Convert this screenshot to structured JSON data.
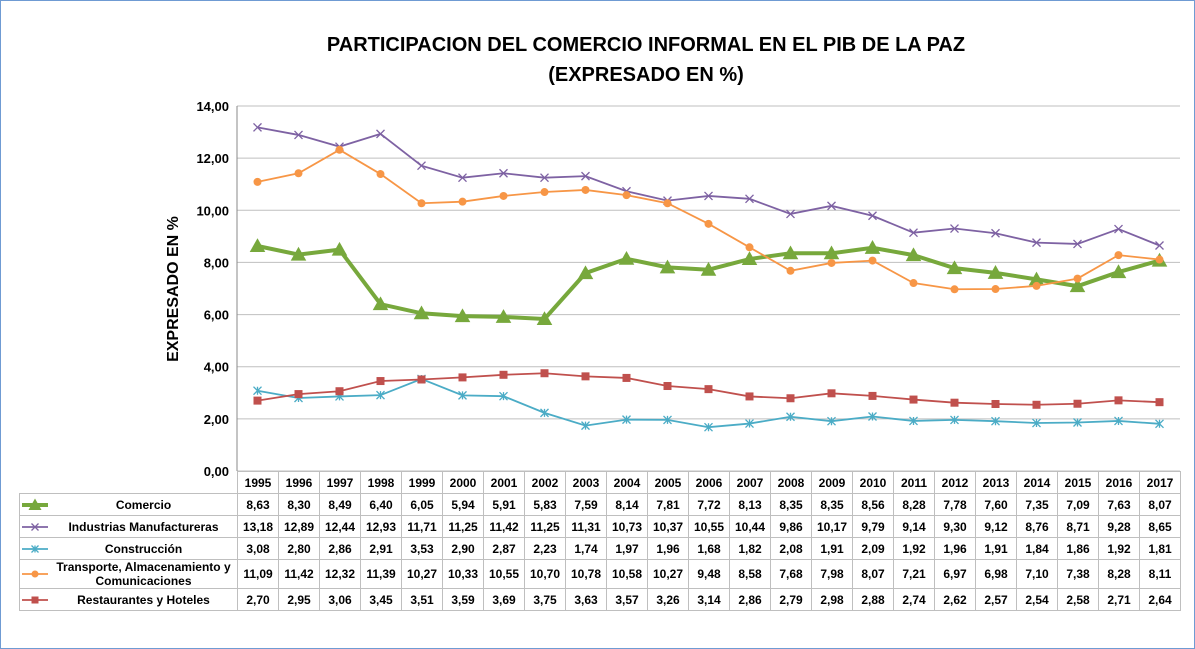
{
  "chart_data": {
    "type": "line",
    "title": "PARTICIPACION DEL COMERCIO INFORMAL EN EL PIB DE LA PAZ",
    "subtitle": "(EXPRESADO EN %)",
    "y_label": "EXPRESADO EN  %",
    "categories": [
      "1995",
      "1996",
      "1997",
      "1998",
      "1999",
      "2000",
      "2001",
      "2002",
      "2003",
      "2004",
      "2005",
      "2006",
      "2007",
      "2008",
      "2009",
      "2010",
      "2011",
      "2012",
      "2013",
      "2014",
      "2015",
      "2016",
      "2017"
    ],
    "ylim": [
      0,
      14
    ],
    "yticks": [
      {
        "value": 0,
        "label": "0,00"
      },
      {
        "value": 2,
        "label": "2,00"
      },
      {
        "value": 4,
        "label": "4,00"
      },
      {
        "value": 6,
        "label": "6,00"
      },
      {
        "value": 8,
        "label": "8,00"
      },
      {
        "value": 10,
        "label": "10,00"
      },
      {
        "value": 12,
        "label": "12,00"
      },
      {
        "value": 14,
        "label": "14,00"
      }
    ],
    "grid": true,
    "series": [
      {
        "name": "Comercio",
        "color": "#77a83c",
        "marker": "triangle",
        "values": [
          8.63,
          8.3,
          8.49,
          6.4,
          6.05,
          5.94,
          5.91,
          5.83,
          7.59,
          8.14,
          7.81,
          7.72,
          8.13,
          8.35,
          8.35,
          8.56,
          8.28,
          7.78,
          7.6,
          7.35,
          7.09,
          7.63,
          8.07
        ],
        "value_labels": [
          "8,63",
          "8,30",
          "8,49",
          "6,40",
          "6,05",
          "5,94",
          "5,91",
          "5,83",
          "7,59",
          "8,14",
          "7,81",
          "7,72",
          "8,13",
          "8,35",
          "8,35",
          "8,56",
          "8,28",
          "7,78",
          "7,60",
          "7,35",
          "7,09",
          "7,63",
          "8,07"
        ]
      },
      {
        "name": "Industrias Manufactureras",
        "color": "#7e62a3",
        "marker": "x",
        "values": [
          13.18,
          12.89,
          12.44,
          12.93,
          11.71,
          11.25,
          11.42,
          11.25,
          11.31,
          10.73,
          10.37,
          10.55,
          10.44,
          9.86,
          10.17,
          9.79,
          9.14,
          9.3,
          9.12,
          8.76,
          8.71,
          9.28,
          8.65
        ],
        "value_labels": [
          "13,18",
          "12,89",
          "12,44",
          "12,93",
          "11,71",
          "11,25",
          "11,42",
          "11,25",
          "11,31",
          "10,73",
          "10,37",
          "10,55",
          "10,44",
          "9,86",
          "10,17",
          "9,79",
          "9,14",
          "9,30",
          "9,12",
          "8,76",
          "8,71",
          "9,28",
          "8,65"
        ]
      },
      {
        "name": "Construcción",
        "color": "#4bacc6",
        "marker": "asterisk",
        "values": [
          3.08,
          2.8,
          2.86,
          2.91,
          3.53,
          2.9,
          2.87,
          2.23,
          1.74,
          1.97,
          1.96,
          1.68,
          1.82,
          2.08,
          1.91,
          2.09,
          1.92,
          1.96,
          1.91,
          1.84,
          1.86,
          1.92,
          1.81
        ],
        "value_labels": [
          "3,08",
          "2,80",
          "2,86",
          "2,91",
          "3,53",
          "2,90",
          "2,87",
          "2,23",
          "1,74",
          "1,97",
          "1,96",
          "1,68",
          "1,82",
          "2,08",
          "1,91",
          "2,09",
          "1,92",
          "1,96",
          "1,91",
          "1,84",
          "1,86",
          "1,92",
          "1,81"
        ]
      },
      {
        "name": "Transporte, Almacenamiento y Comunicaciones",
        "color": "#f79646",
        "marker": "circle",
        "values": [
          11.09,
          11.42,
          12.32,
          11.39,
          10.27,
          10.33,
          10.55,
          10.7,
          10.78,
          10.58,
          10.27,
          9.48,
          8.58,
          7.68,
          7.98,
          8.07,
          7.21,
          6.97,
          6.98,
          7.1,
          7.38,
          8.28,
          8.11
        ],
        "value_labels": [
          "11,09",
          "11,42",
          "12,32",
          "11,39",
          "10,27",
          "10,33",
          "10,55",
          "10,70",
          "10,78",
          "10,58",
          "10,27",
          "9,48",
          "8,58",
          "7,68",
          "7,98",
          "8,07",
          "7,21",
          "6,97",
          "6,98",
          "7,10",
          "7,38",
          "8,28",
          "8,11"
        ]
      },
      {
        "name": "Restaurantes y Hoteles",
        "color": "#c0504d",
        "marker": "square",
        "values": [
          2.7,
          2.95,
          3.06,
          3.45,
          3.51,
          3.59,
          3.69,
          3.75,
          3.63,
          3.57,
          3.26,
          3.14,
          2.86,
          2.79,
          2.98,
          2.88,
          2.74,
          2.62,
          2.57,
          2.54,
          2.58,
          2.71,
          2.64
        ],
        "value_labels": [
          "2,70",
          "2,95",
          "3,06",
          "3,45",
          "3,51",
          "3,59",
          "3,69",
          "3,75",
          "3,63",
          "3,57",
          "3,26",
          "3,14",
          "2,86",
          "2,79",
          "2,98",
          "2,88",
          "2,74",
          "2,62",
          "2,57",
          "2,54",
          "2,58",
          "2,71",
          "2,64"
        ]
      }
    ]
  }
}
